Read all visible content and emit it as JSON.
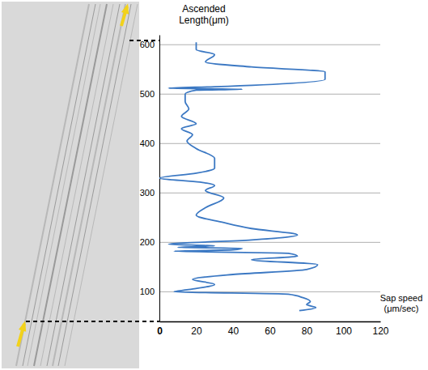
{
  "chart_data": {
    "type": "line",
    "x_label": "Sap speed (μm/sec)",
    "y_label": "Ascended Length(μm)",
    "x": [
      76,
      85,
      80,
      82,
      78,
      70,
      8,
      15,
      30,
      18,
      40,
      80,
      86,
      50,
      75,
      70,
      8,
      40,
      45,
      10,
      30,
      5,
      50,
      75,
      50,
      35,
      20,
      25,
      35,
      25,
      30,
      22,
      0,
      20,
      30,
      30,
      20,
      15,
      18,
      12,
      20,
      12,
      16,
      14,
      14,
      20,
      45,
      5,
      30,
      90,
      90,
      50,
      25,
      30,
      20,
      20
    ],
    "values": [
      62,
      68,
      74,
      80,
      88,
      95,
      100,
      104,
      115,
      125,
      135,
      145,
      155,
      165,
      172,
      178,
      182,
      185,
      188,
      190,
      193,
      196,
      205,
      215,
      228,
      240,
      255,
      270,
      290,
      305,
      315,
      322,
      330,
      340,
      350,
      370,
      390,
      405,
      418,
      430,
      440,
      455,
      470,
      485,
      500,
      508,
      510,
      512,
      515,
      530,
      545,
      555,
      565,
      580,
      590,
      605
    ],
    "color": "#3b78c3",
    "xlim": [
      0,
      120
    ],
    "xticks": [
      0,
      20,
      40,
      60,
      80,
      100,
      120
    ],
    "ylim": [
      40,
      620
    ],
    "yticks": [
      100,
      200,
      300,
      400,
      500,
      600
    ],
    "grid": true
  }
}
